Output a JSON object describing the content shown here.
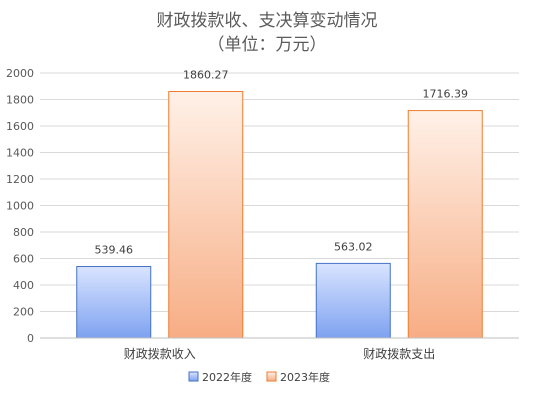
{
  "chart_data": {
    "type": "bar",
    "title": "财政拨款收、支决算变动情况",
    "subtitle": "（单位：万元）",
    "categories": [
      "财政拨款收入",
      "财政拨款支出"
    ],
    "series": [
      {
        "name": "2022年度",
        "values": [
          539.46,
          563.02
        ],
        "labels": [
          "539.46",
          "563.02"
        ],
        "color_top": "#d9e4ff",
        "color_bottom": "#7ea2f0",
        "stroke": "#4472c4"
      },
      {
        "name": "2023年度",
        "values": [
          1860.27,
          1716.39
        ],
        "labels": [
          "1860.27",
          "1716.39"
        ],
        "color_top": "#fff1e8",
        "color_bottom": "#f7ad84",
        "stroke": "#ed7d31"
      }
    ],
    "ylim": [
      0,
      2000
    ],
    "yticks": [
      "0",
      "200",
      "400",
      "600",
      "800",
      "1000",
      "1200",
      "1400",
      "1600",
      "1800",
      "2000"
    ],
    "grid": true,
    "legend": "bottom"
  }
}
